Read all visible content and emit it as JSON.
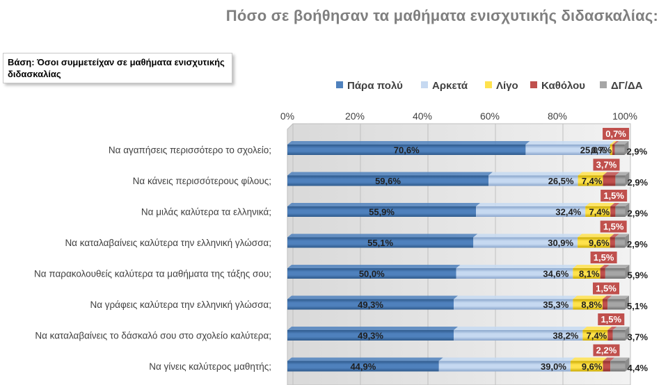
{
  "title": "Πόσο σε βοήθησαν τα μαθήματα ενισχυτικής διδασκαλίας:",
  "base_note": "Βάση: Όσοι συμμετείχαν σε μαθήματα ενισχυτικής διδασκαλίας",
  "colors": {
    "para_poli": "#4f81bd",
    "arketa": "#c6d9f1",
    "ligo": "#ffe24d",
    "katholou": "#c0504d",
    "dg_da": "#a6a6a6"
  },
  "chart_data": {
    "type": "bar",
    "orientation": "horizontal",
    "stacked": true,
    "xlim": [
      0,
      100
    ],
    "x_ticks": [
      "0%",
      "20%",
      "40%",
      "60%",
      "80%",
      "100%"
    ],
    "legend_position": "top-right",
    "categories": [
      "Να αγαπήσεις περισσότερο το σχολείο;",
      "Να κάνεις περισσότερους φίλους;",
      "Να μιλάς καλύτερα τα ελληνικά;",
      "Να καταλαβαίνεις καλύτερα την ελληνική γλώσσα;",
      "Να παρακολουθείς καλύτερα τα μαθήματα της τάξης σου;",
      "Να γράφεις καλύτερα την ελληνική γλώσσα;",
      "Να καταλαβαίνεις το δάσκαλό σου στο σχολείο καλύτερα;",
      "Να γίνεις καλύτερος μαθητής;"
    ],
    "series": [
      {
        "name": "Πάρα πολύ",
        "values": [
          70.6,
          59.6,
          55.9,
          55.1,
          50.0,
          49.3,
          49.3,
          44.9
        ],
        "labels": [
          "70,6%",
          "59,6%",
          "55,9%",
          "55,1%",
          "50,0%",
          "49,3%",
          "49,3%",
          "44,9%"
        ]
      },
      {
        "name": "Αρκετά",
        "values": [
          25.0,
          26.5,
          32.4,
          30.9,
          34.6,
          35.3,
          38.2,
          39.0
        ],
        "labels": [
          "25,0%",
          "26,5%",
          "32,4%",
          "30,9%",
          "34,6%",
          "35,3%",
          "38,2%",
          "39,0%"
        ]
      },
      {
        "name": "Λίγο",
        "values": [
          0.7,
          7.4,
          7.4,
          9.6,
          8.1,
          8.8,
          7.4,
          9.6
        ],
        "labels": [
          "0,7%",
          "7,4%",
          "7,4%",
          "9,6%",
          "8,1%",
          "8,8%",
          "7,4%",
          "9,6%"
        ]
      },
      {
        "name": "Καθόλου",
        "values": [
          0.7,
          3.7,
          1.5,
          1.5,
          1.5,
          1.5,
          1.5,
          2.2
        ],
        "labels": [
          "0,7%",
          "3,7%",
          "1,5%",
          "1,5%",
          "1,5%",
          "1,5%",
          "1,5%",
          "2,2%"
        ]
      },
      {
        "name": "ΔΓ/ΔΑ",
        "values": [
          2.9,
          2.9,
          2.9,
          2.9,
          5.9,
          5.1,
          3.7,
          4.4
        ],
        "labels": [
          "2,9%",
          "2,9%",
          "2,9%",
          "2,9%",
          "5,9%",
          "5,1%",
          "3,7%",
          "4,4%"
        ]
      }
    ]
  }
}
